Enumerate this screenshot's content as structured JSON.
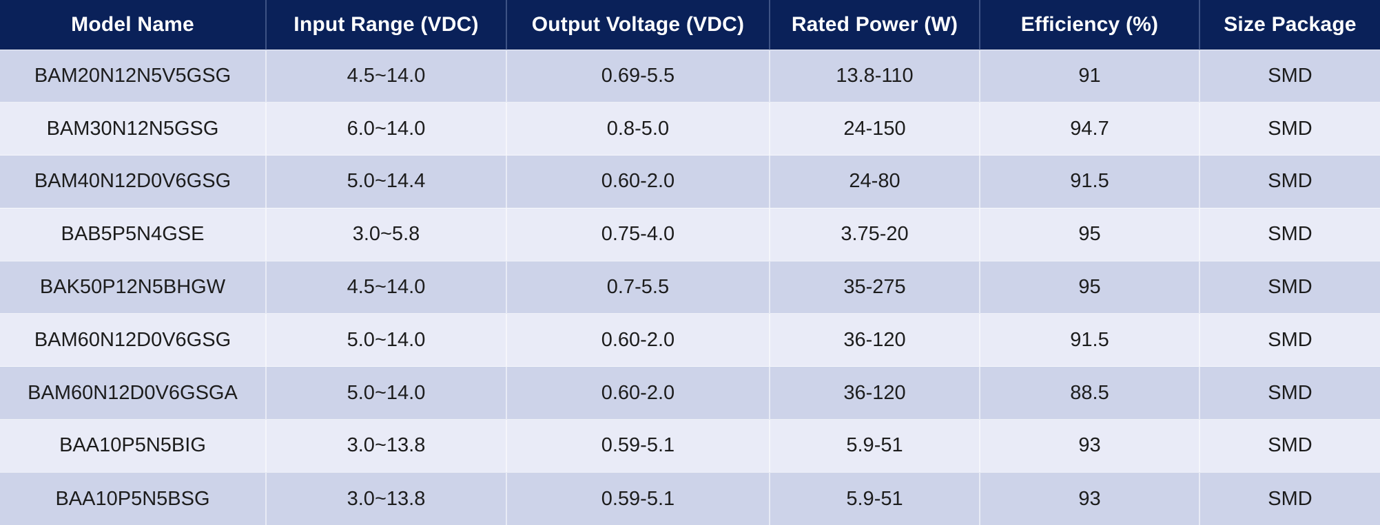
{
  "colors": {
    "header_bg": "#0a2159",
    "header_text": "#ffffff",
    "row_odd_bg": "#cdd3e9",
    "row_even_bg": "#e9ebf7",
    "body_text": "#1c1c1c"
  },
  "chart_data": {
    "type": "table",
    "columns": [
      "Model Name",
      "Input Range (VDC)",
      "Output Voltage (VDC)",
      "Rated Power (W)",
      "Efficiency (%)",
      "Size Package"
    ],
    "rows": [
      [
        "BAM20N12N5V5GSG",
        "4.5~14.0",
        "0.69-5.5",
        "13.8-110",
        "91",
        "SMD"
      ],
      [
        "BAM30N12N5GSG",
        "6.0~14.0",
        "0.8-5.0",
        "24-150",
        "94.7",
        "SMD"
      ],
      [
        "BAM40N12D0V6GSG",
        "5.0~14.4",
        "0.60-2.0",
        "24-80",
        "91.5",
        "SMD"
      ],
      [
        "BAB5P5N4GSE",
        "3.0~5.8",
        "0.75-4.0",
        "3.75-20",
        "95",
        "SMD"
      ],
      [
        "BAK50P12N5BHGW",
        "4.5~14.0",
        "0.7-5.5",
        "35-275",
        "95",
        "SMD"
      ],
      [
        "BAM60N12D0V6GSG",
        "5.0~14.0",
        "0.60-2.0",
        "36-120",
        "91.5",
        "SMD"
      ],
      [
        "BAM60N12D0V6GSGA",
        "5.0~14.0",
        "0.60-2.0",
        "36-120",
        "88.5",
        "SMD"
      ],
      [
        "BAA10P5N5BIG",
        "3.0~13.8",
        "0.59-5.1",
        "5.9-51",
        "93",
        "SMD"
      ],
      [
        "BAA10P5N5BSG",
        "3.0~13.8",
        "0.59-5.1",
        "5.9-51",
        "93",
        "SMD"
      ]
    ]
  }
}
